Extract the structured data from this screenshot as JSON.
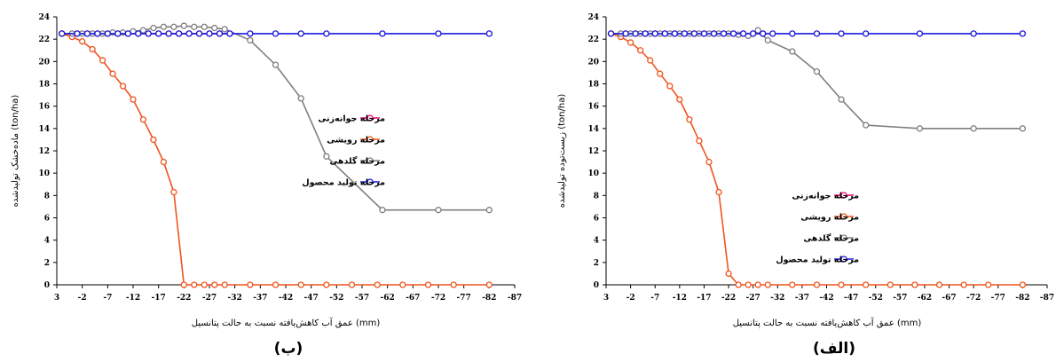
{
  "chart_data": [
    {
      "panel": "b",
      "type": "line",
      "panel_label": "(ب)",
      "xlabel": "عمق آب کاهش‌یافته نسبت به حالت پتانسیل (mm)",
      "ylabel": "ماده‌خشک تولیدشده (ton/ha)",
      "xlim": [
        3,
        -87
      ],
      "ylim": [
        0,
        24
      ],
      "x_ticks": [
        3,
        -2,
        -7,
        -12,
        -17,
        -22,
        -27,
        -32,
        -37,
        -42,
        -47,
        -52,
        -57,
        -62,
        -67,
        -72,
        -77,
        -82,
        -87
      ],
      "y_ticks": [
        0,
        2,
        4,
        6,
        8,
        10,
        12,
        14,
        16,
        18,
        20,
        22,
        24
      ],
      "legend_position": "right",
      "grid": false,
      "series": [
        {
          "name": "مرحله جوانه‌زنی",
          "color": "#e8006f",
          "x": [
            2,
            -1,
            -3,
            -5,
            -7,
            -9,
            -11,
            -13,
            -15,
            -17,
            -19,
            -21,
            -23,
            -25,
            -27,
            -29,
            -31
          ],
          "y": [
            22.5,
            22.5,
            22.5,
            22.5,
            22.5,
            22.5,
            22.5,
            22.5,
            22.5,
            22.5,
            22.5,
            22.5,
            22.5,
            22.5,
            22.5,
            22.5,
            22.5
          ]
        },
        {
          "name": "مرحله رویشی",
          "color": "#f0541e",
          "x": [
            2,
            0,
            -2,
            -4,
            -6,
            -8,
            -10,
            -12,
            -14,
            -16,
            -18,
            -20,
            -22,
            -24,
            -26,
            -28,
            -30,
            -35,
            -40,
            -45,
            -50,
            -55,
            -60,
            -65,
            -70,
            -75,
            -82
          ],
          "y": [
            22.5,
            22.2,
            21.8,
            21.1,
            20.1,
            18.9,
            17.8,
            16.6,
            14.8,
            13.0,
            11.0,
            8.3,
            0,
            0,
            0,
            0,
            0,
            0,
            0,
            0,
            0,
            0,
            0,
            0,
            0,
            0,
            0
          ]
        },
        {
          "name": "مرحله گلدهی",
          "color": "#7f7f7f",
          "x": [
            2,
            0,
            -2,
            -4,
            -6,
            -8,
            -10,
            -12,
            -14,
            -16,
            -18,
            -20,
            -22,
            -24,
            -26,
            -28,
            -30,
            -35,
            -40,
            -45,
            -50,
            -61,
            -72,
            -82
          ],
          "y": [
            22.5,
            22.5,
            22.5,
            22.5,
            22.5,
            22.6,
            22.6,
            22.7,
            22.8,
            23.0,
            23.1,
            23.1,
            23.2,
            23.1,
            23.1,
            23.0,
            22.9,
            21.9,
            19.7,
            16.7,
            11.5,
            6.7,
            6.7,
            6.7
          ]
        },
        {
          "name": "مرحله تولید محصول",
          "color": "#1a1adb",
          "x": [
            2,
            -1,
            -3,
            -5,
            -7,
            -9,
            -11,
            -13,
            -15,
            -17,
            -19,
            -21,
            -23,
            -25,
            -27,
            -29,
            -31,
            -35,
            -40,
            -45,
            -50,
            -61,
            -72,
            -82
          ],
          "y": [
            22.5,
            22.5,
            22.5,
            22.5,
            22.5,
            22.5,
            22.5,
            22.5,
            22.5,
            22.5,
            22.5,
            22.5,
            22.5,
            22.5,
            22.5,
            22.5,
            22.5,
            22.5,
            22.5,
            22.5,
            22.5,
            22.5,
            22.5,
            22.5
          ]
        }
      ]
    },
    {
      "panel": "alef",
      "type": "line",
      "panel_label": "(الف)",
      "xlabel": "عمق آب کاهش‌یافته نسبت به حالت پتانسیل (mm)",
      "ylabel": "زیست‌توده تولیدشده (ton/ha)",
      "xlim": [
        3,
        -87
      ],
      "ylim": [
        0,
        24
      ],
      "x_ticks": [
        3,
        -2,
        -7,
        -12,
        -17,
        -22,
        -27,
        -32,
        -37,
        -42,
        -47,
        -52,
        -57,
        -62,
        -67,
        -72,
        -77,
        -82,
        -87
      ],
      "y_ticks": [
        0,
        2,
        4,
        6,
        8,
        10,
        12,
        14,
        16,
        18,
        20,
        22,
        24
      ],
      "legend_position": "right",
      "grid": false,
      "series": [
        {
          "name": "مرحله جوانه‌زنی",
          "color": "#e8006f",
          "x": [
            2,
            -1,
            -3,
            -5,
            -7,
            -9,
            -11,
            -13,
            -15,
            -17,
            -19,
            -21,
            -23,
            -25,
            -27,
            -29
          ],
          "y": [
            22.5,
            22.5,
            22.5,
            22.5,
            22.5,
            22.5,
            22.5,
            22.5,
            22.5,
            22.5,
            22.5,
            22.5,
            22.5,
            22.5,
            22.5,
            22.5
          ]
        },
        {
          "name": "مرحله رویشی",
          "color": "#f0541e",
          "x": [
            2,
            0,
            -2,
            -4,
            -6,
            -8,
            -10,
            -12,
            -14,
            -16,
            -18,
            -20,
            -22,
            -24,
            -26,
            -28,
            -30,
            -35,
            -40,
            -45,
            -50,
            -55,
            -60,
            -65,
            -70,
            -75,
            -82
          ],
          "y": [
            22.5,
            22.2,
            21.7,
            21.0,
            20.1,
            18.9,
            17.8,
            16.6,
            14.8,
            12.9,
            11.0,
            8.3,
            1.0,
            0,
            0,
            0,
            0,
            0,
            0,
            0,
            0,
            0,
            0,
            0,
            0,
            0,
            0
          ]
        },
        {
          "name": "مرحله گلدهی",
          "color": "#7f7f7f",
          "x": [
            2,
            0,
            -2,
            -4,
            -6,
            -8,
            -10,
            -12,
            -14,
            -16,
            -18,
            -20,
            -22,
            -24,
            -26,
            -28,
            -30,
            -35,
            -40,
            -45,
            -50,
            -61,
            -72,
            -82
          ],
          "y": [
            22.5,
            22.5,
            22.5,
            22.5,
            22.5,
            22.5,
            22.5,
            22.5,
            22.5,
            22.5,
            22.5,
            22.5,
            22.5,
            22.4,
            22.3,
            22.8,
            21.9,
            20.9,
            19.1,
            16.6,
            14.3,
            14.0,
            14.0,
            14.0
          ]
        },
        {
          "name": "مرحله تولید محصول",
          "color": "#1a1adb",
          "x": [
            2,
            -1,
            -3,
            -5,
            -7,
            -9,
            -11,
            -13,
            -15,
            -17,
            -19,
            -21,
            -23,
            -25,
            -27,
            -29,
            -31,
            -35,
            -40,
            -45,
            -50,
            -61,
            -72,
            -82
          ],
          "y": [
            22.5,
            22.5,
            22.5,
            22.5,
            22.5,
            22.5,
            22.5,
            22.5,
            22.5,
            22.5,
            22.5,
            22.5,
            22.5,
            22.5,
            22.5,
            22.5,
            22.5,
            22.5,
            22.5,
            22.5,
            22.5,
            22.5,
            22.5,
            22.5
          ]
        }
      ]
    }
  ]
}
